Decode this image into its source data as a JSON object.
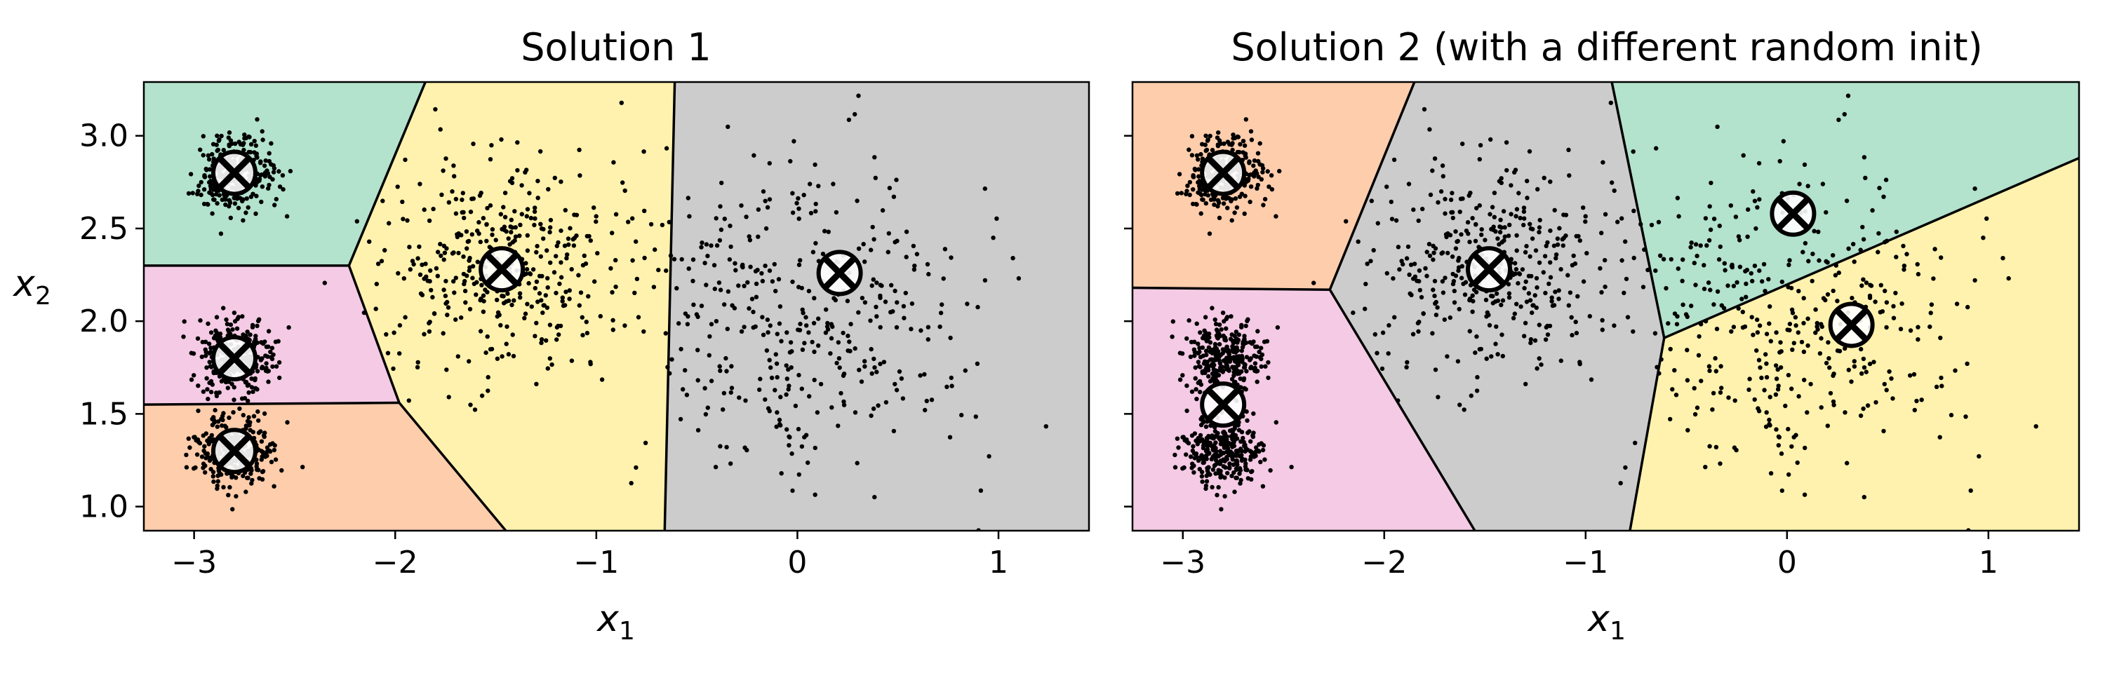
{
  "colors": {
    "region_teal": "#b3e2cd",
    "region_pink": "#f4cae4",
    "region_orange": "#fdcdac",
    "region_yellow": "#fff2ae",
    "region_gray": "#cccccc",
    "boundary": "#000000",
    "points": "#000000",
    "centroid_marker": "#000000",
    "centroid_halo": "#ffffff"
  },
  "chart_data": [
    {
      "type": "scatter",
      "title": "Solution 1",
      "xlabel": "x",
      "xlabel_sub": "1",
      "ylabel": "x",
      "ylabel_sub": "2",
      "xlim": [
        -3.25,
        1.45
      ],
      "ylim": [
        0.87,
        3.29
      ],
      "xticks": [
        -3,
        -2,
        -1,
        0,
        1
      ],
      "xtick_labels": [
        "−3",
        "−2",
        "−1",
        "0",
        "1"
      ],
      "yticks": [
        1.0,
        1.5,
        2.0,
        2.5,
        3.0
      ],
      "ytick_labels": [
        "1.0",
        "1.5",
        "2.0",
        "2.5",
        "3.0"
      ],
      "legend": "none",
      "grid": false,
      "regions": [
        {
          "color": "region_teal",
          "polygon": [
            [
              -3.25,
              3.29
            ],
            [
              -1.85,
              3.29
            ],
            [
              -2.23,
              2.3
            ],
            [
              -3.25,
              2.3
            ]
          ]
        },
        {
          "color": "region_pink",
          "polygon": [
            [
              -3.25,
              2.3
            ],
            [
              -2.23,
              2.3
            ],
            [
              -1.98,
              1.56
            ],
            [
              -3.25,
              1.55
            ]
          ]
        },
        {
          "color": "region_orange",
          "polygon": [
            [
              -3.25,
              1.55
            ],
            [
              -1.98,
              1.56
            ],
            [
              -1.45,
              0.87
            ],
            [
              -3.25,
              0.87
            ]
          ]
        },
        {
          "color": "region_yellow",
          "polygon": [
            [
              -1.85,
              3.29
            ],
            [
              -0.61,
              3.29
            ],
            [
              -0.66,
              0.87
            ],
            [
              -1.45,
              0.87
            ],
            [
              -1.98,
              1.56
            ],
            [
              -2.23,
              2.3
            ]
          ]
        },
        {
          "color": "region_gray",
          "polygon": [
            [
              -0.61,
              3.29
            ],
            [
              1.45,
              3.29
            ],
            [
              1.45,
              0.87
            ],
            [
              -0.66,
              0.87
            ]
          ]
        }
      ],
      "boundaries": [
        [
          [
            -1.85,
            3.29
          ],
          [
            -2.23,
            2.3
          ]
        ],
        [
          [
            -3.25,
            2.3
          ],
          [
            -2.23,
            2.3
          ]
        ],
        [
          [
            -2.23,
            2.3
          ],
          [
            -1.98,
            1.56
          ]
        ],
        [
          [
            -3.25,
            1.55
          ],
          [
            -1.98,
            1.56
          ]
        ],
        [
          [
            -1.98,
            1.56
          ],
          [
            -1.45,
            0.87
          ]
        ],
        [
          [
            -0.61,
            3.29
          ],
          [
            -0.66,
            0.87
          ]
        ]
      ],
      "centroids": [
        [
          -2.8,
          2.8
        ],
        [
          -2.8,
          1.8
        ],
        [
          -2.8,
          1.3
        ],
        [
          -1.47,
          2.28
        ],
        [
          0.21,
          2.26
        ]
      ],
      "clusters": [
        {
          "center": [
            -2.8,
            2.8
          ],
          "spread": 0.1,
          "n": 300
        },
        {
          "center": [
            -2.8,
            1.8
          ],
          "spread": 0.1,
          "n": 300
        },
        {
          "center": [
            -2.8,
            1.3
          ],
          "spread": 0.1,
          "n": 300
        },
        {
          "center": [
            -1.46,
            2.29
          ],
          "spread": 0.3,
          "n": 400
        },
        {
          "center": [
            0.0,
            2.05
          ],
          "spread": 0.42,
          "n": 400
        }
      ]
    },
    {
      "type": "scatter",
      "title": "Solution 2 (with a different random init)",
      "xlabel": "x",
      "xlabel_sub": "1",
      "xlim": [
        -3.25,
        1.45
      ],
      "ylim": [
        0.87,
        3.29
      ],
      "xticks": [
        -3,
        -2,
        -1,
        0,
        1
      ],
      "xtick_labels": [
        "−3",
        "−2",
        "−1",
        "0",
        "1"
      ],
      "yticks": [
        1.0,
        1.5,
        2.0,
        2.5,
        3.0
      ],
      "legend": "none",
      "grid": false,
      "regions": [
        {
          "color": "region_orange",
          "polygon": [
            [
              -3.25,
              3.29
            ],
            [
              -1.85,
              3.29
            ],
            [
              -2.27,
              2.17
            ],
            [
              -3.25,
              2.18
            ]
          ]
        },
        {
          "color": "region_pink",
          "polygon": [
            [
              -3.25,
              2.18
            ],
            [
              -2.27,
              2.17
            ],
            [
              -1.55,
              0.87
            ],
            [
              -3.25,
              0.87
            ]
          ]
        },
        {
          "color": "region_gray",
          "polygon": [
            [
              -1.85,
              3.29
            ],
            [
              -0.87,
              3.29
            ],
            [
              -0.61,
              1.91
            ],
            [
              -0.78,
              0.87
            ],
            [
              -1.55,
              0.87
            ],
            [
              -2.27,
              2.17
            ]
          ]
        },
        {
          "color": "region_teal",
          "polygon": [
            [
              -0.87,
              3.29
            ],
            [
              1.45,
              3.29
            ],
            [
              1.45,
              2.88
            ],
            [
              -0.61,
              1.91
            ]
          ]
        },
        {
          "color": "region_yellow",
          "polygon": [
            [
              -0.61,
              1.91
            ],
            [
              1.45,
              2.88
            ],
            [
              1.45,
              0.87
            ],
            [
              -0.78,
              0.87
            ]
          ]
        }
      ],
      "boundaries": [
        [
          [
            -1.85,
            3.29
          ],
          [
            -2.27,
            2.17
          ]
        ],
        [
          [
            -3.25,
            2.18
          ],
          [
            -2.27,
            2.17
          ]
        ],
        [
          [
            -2.27,
            2.17
          ],
          [
            -1.55,
            0.87
          ]
        ],
        [
          [
            -0.87,
            3.29
          ],
          [
            -0.61,
            1.91
          ]
        ],
        [
          [
            -0.61,
            1.91
          ],
          [
            -0.78,
            0.87
          ]
        ],
        [
          [
            -0.61,
            1.91
          ],
          [
            1.45,
            2.88
          ]
        ]
      ],
      "centroids": [
        [
          -2.8,
          2.8
        ],
        [
          -2.8,
          1.55
        ],
        [
          -1.48,
          2.28
        ],
        [
          0.03,
          2.58
        ],
        [
          0.32,
          1.98
        ]
      ],
      "clusters": [
        {
          "center": [
            -2.8,
            2.8
          ],
          "spread": 0.1,
          "n": 300
        },
        {
          "center": [
            -2.8,
            1.8
          ],
          "spread": 0.1,
          "n": 300
        },
        {
          "center": [
            -2.8,
            1.3
          ],
          "spread": 0.1,
          "n": 300
        },
        {
          "center": [
            -1.46,
            2.29
          ],
          "spread": 0.3,
          "n": 400
        },
        {
          "center": [
            0.0,
            2.05
          ],
          "spread": 0.42,
          "n": 400
        }
      ]
    }
  ]
}
